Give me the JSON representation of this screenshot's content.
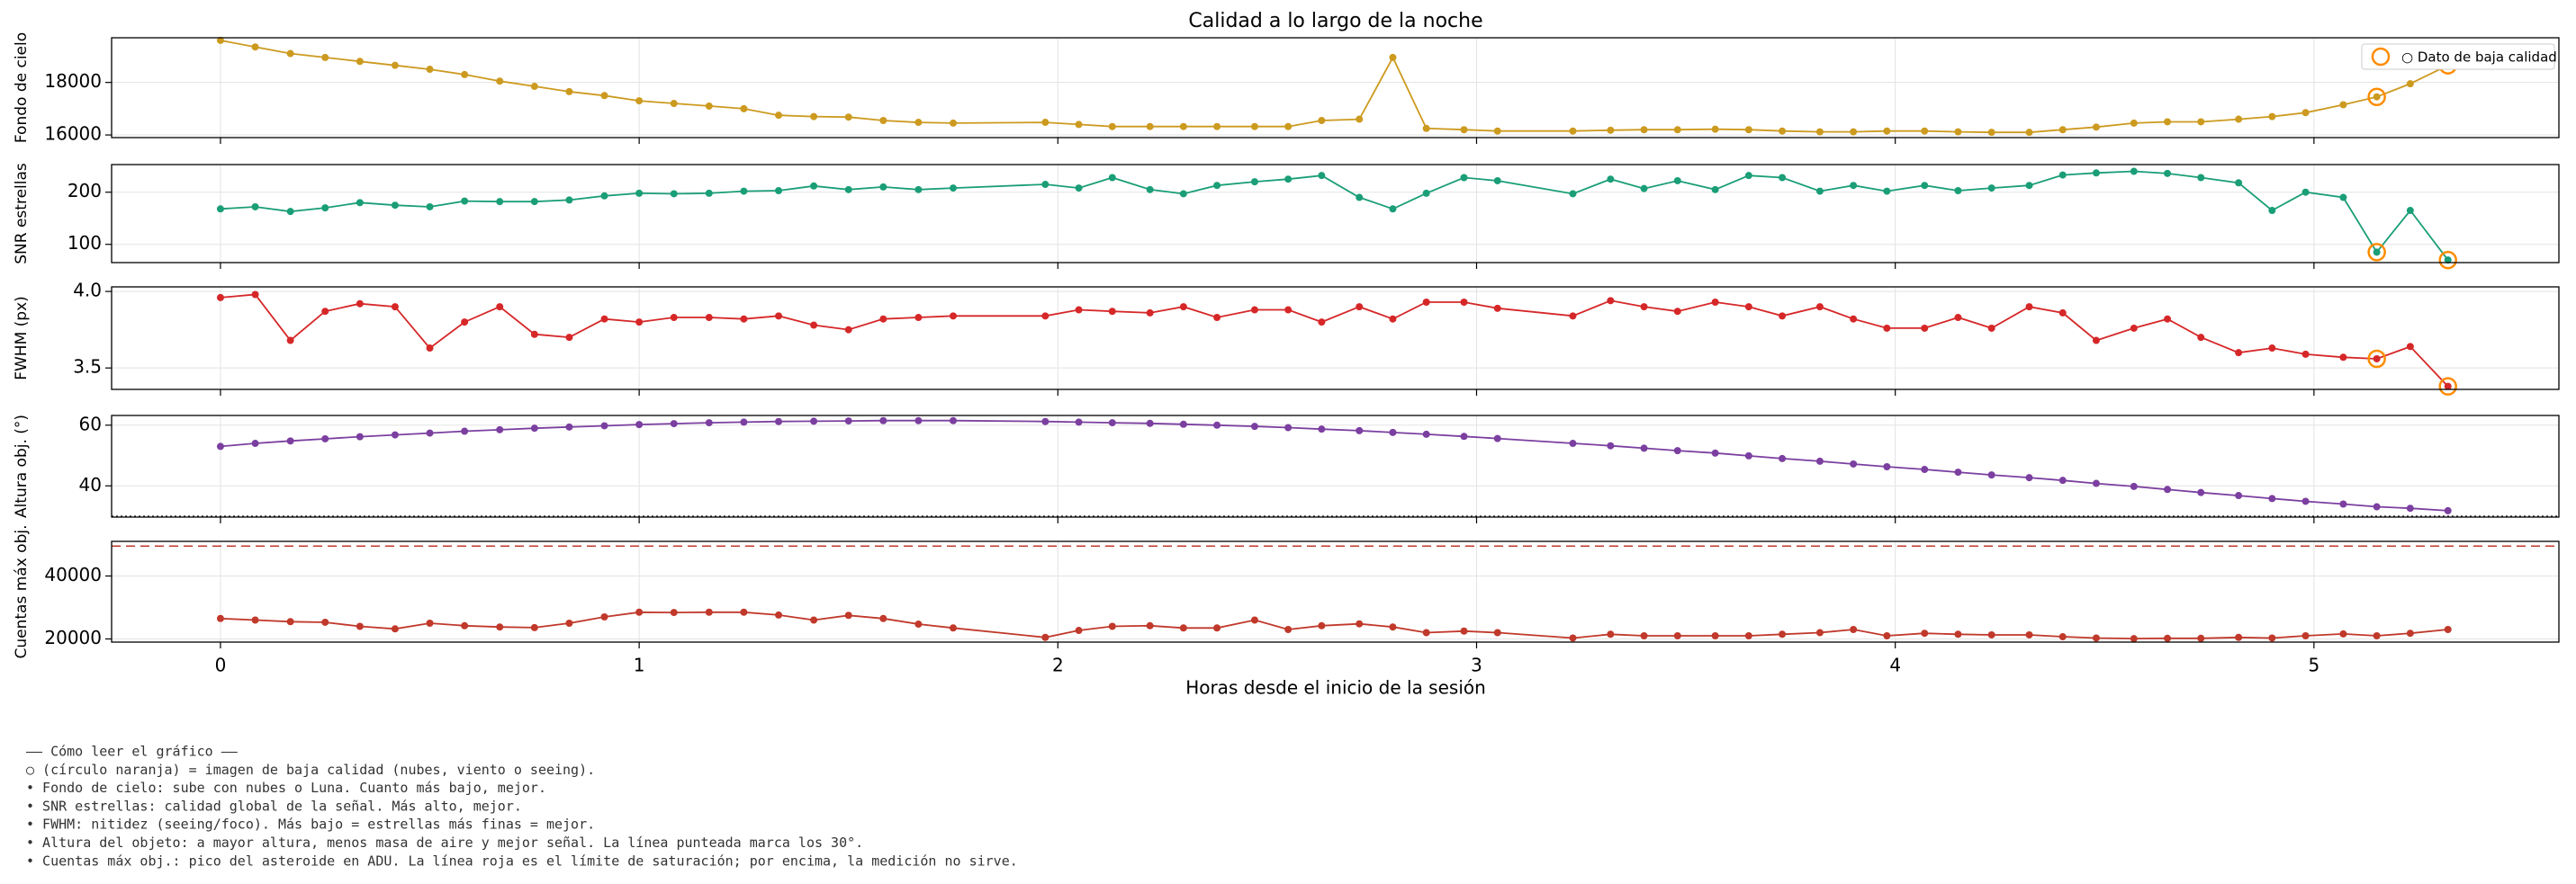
{
  "chart_data": {
    "type": "line",
    "title": "Calidad a lo largo de la noche",
    "xlabel": "Horas desde el inicio de la sesión",
    "x": [
      0,
      0.083,
      0.167,
      0.25,
      0.333,
      0.417,
      0.5,
      0.583,
      0.667,
      0.75,
      0.833,
      0.917,
      1.0,
      1.083,
      1.167,
      1.25,
      1.333,
      1.417,
      1.5,
      1.583,
      1.667,
      1.75,
      1.97,
      2.05,
      2.13,
      2.22,
      2.3,
      2.38,
      2.47,
      2.55,
      2.63,
      2.72,
      2.8,
      2.88,
      2.97,
      3.05,
      3.23,
      3.32,
      3.4,
      3.48,
      3.57,
      3.65,
      3.73,
      3.82,
      3.9,
      3.98,
      4.07,
      4.15,
      4.23,
      4.32,
      4.4,
      4.48,
      4.57,
      4.65,
      4.73,
      4.82,
      4.9,
      4.98,
      5.07,
      5.15,
      5.23,
      5.32
    ],
    "xlim": [
      -0.26,
      5.585
    ],
    "xticks": [
      0,
      1,
      2,
      3,
      4,
      5
    ],
    "grid": true,
    "flagged": [
      59,
      61
    ],
    "flagged_color": "#ff8c00",
    "legend": {
      "label": "○ Dato de baja calidad",
      "loc": "upper right"
    },
    "panels": [
      {
        "ylabel": "Fondo de cielo",
        "ylim": [
          15900,
          19700
        ],
        "yticks": [
          16000,
          18000
        ],
        "mark_flagged": true,
        "series": [
          {
            "color": "#cc9a1f",
            "values": [
              19600,
              19350,
              19100,
              18950,
              18800,
              18650,
              18500,
              18300,
              18050,
              17850,
              17650,
              17500,
              17300,
              17200,
              17100,
              17000,
              16750,
              16700,
              16680,
              16550,
              16480,
              16450,
              16480,
              16400,
              16320,
              16320,
              16320,
              16320,
              16320,
              16320,
              16550,
              16600,
              18950,
              16250,
              16200,
              16150,
              16150,
              16180,
              16200,
              16200,
              16220,
              16200,
              16150,
              16120,
              16120,
              16150,
              16150,
              16120,
              16100,
              16100,
              16200,
              16300,
              16450,
              16500,
              16500,
              16600,
              16700,
              16850,
              17150,
              17450,
              17950,
              18650
            ]
          }
        ]
      },
      {
        "ylabel": "SNR estrellas",
        "ylim": [
          65,
          253
        ],
        "yticks": [
          100,
          200
        ],
        "mark_flagged": true,
        "series": [
          {
            "color": "#1a9e77",
            "values": [
              168,
              172,
              163,
              170,
              180,
              175,
              172,
              183,
              182,
              182,
              185,
              193,
              198,
              197,
              198,
              202,
              203,
              212,
              205,
              210,
              205,
              208,
              215,
              208,
              228,
              205,
              197,
              213,
              220,
              225,
              232,
              190,
              168,
              198,
              228,
              222,
              197,
              225,
              207,
              222,
              205,
              232,
              228,
              202,
              213,
              202,
              213,
              203,
              208,
              213,
              233,
              237,
              240,
              236,
              228,
              218,
              165,
              200,
              190,
              85,
              165,
              70
            ]
          }
        ]
      },
      {
        "ylabel": "FWHM (px)",
        "ylim": [
          3.36,
          4.03
        ],
        "yticks": [
          3.5,
          {
            "value": 4.0,
            "label": "4.0"
          }
        ],
        "mark_flagged": true,
        "series": [
          {
            "color": "#d62728",
            "values": [
              3.96,
              3.98,
              3.68,
              3.87,
              3.92,
              3.9,
              3.63,
              3.8,
              3.9,
              3.72,
              3.7,
              3.82,
              3.8,
              3.83,
              3.83,
              3.82,
              3.84,
              3.78,
              3.75,
              3.82,
              3.83,
              3.84,
              3.84,
              3.88,
              3.87,
              3.86,
              3.9,
              3.83,
              3.88,
              3.88,
              3.8,
              3.9,
              3.82,
              3.93,
              3.93,
              3.89,
              3.84,
              3.94,
              3.9,
              3.87,
              3.93,
              3.9,
              3.84,
              3.9,
              3.82,
              3.76,
              3.76,
              3.83,
              3.76,
              3.9,
              3.86,
              3.68,
              3.76,
              3.82,
              3.7,
              3.6,
              3.63,
              3.59,
              3.57,
              3.56,
              3.64,
              3.38
            ]
          }
        ]
      },
      {
        "ylabel": "Altura obj. (°)",
        "ylim": [
          29.7,
          63.2
        ],
        "yticks": [
          40,
          60
        ],
        "mark_flagged": false,
        "hline": {
          "value": 30,
          "color": "#333333",
          "dash": "2,3"
        },
        "series": [
          {
            "color": "#7b3fa0",
            "values": [
              53,
              54,
              54.8,
              55.5,
              56.2,
              56.8,
              57.4,
              58,
              58.5,
              59,
              59.4,
              59.8,
              60.2,
              60.5,
              60.8,
              61,
              61.2,
              61.3,
              61.4,
              61.5,
              61.5,
              61.5,
              61.2,
              61,
              60.8,
              60.6,
              60.3,
              60,
              59.6,
              59.2,
              58.7,
              58.2,
              57.6,
              57,
              56.3,
              55.6,
              54,
              53.2,
              52.4,
              51.6,
              50.8,
              49.9,
              49,
              48.1,
              47.2,
              46.3,
              45.4,
              44.5,
              43.6,
              42.7,
              41.8,
              40.8,
              39.8,
              38.8,
              37.8,
              36.8,
              35.8,
              34.9,
              34,
              33.1,
              32.6,
              31.8
            ]
          }
        ]
      },
      {
        "ylabel": "Cuentas máx obj.",
        "ylim": [
          19000,
          51000
        ],
        "yticks": [
          20000,
          40000
        ],
        "mark_flagged": false,
        "hline": {
          "value": 49500,
          "color": "#c0392b",
          "dash": "10,6"
        },
        "series": [
          {
            "color": "#c0392b",
            "values": [
              26500,
              26000,
              25500,
              25300,
              24000,
              23200,
              25000,
              24200,
              23800,
              23600,
              25000,
              27000,
              28500,
              28400,
              28500,
              28500,
              27600,
              26000,
              27500,
              26500,
              24700,
              23500,
              20500,
              22700,
              24000,
              24200,
              23500,
              23500,
              26000,
              23000,
              24200,
              24800,
              23800,
              22000,
              22500,
              22000,
              20300,
              21500,
              21000,
              21000,
              21000,
              21000,
              21500,
              22000,
              23000,
              21000,
              21800,
              21500,
              21300,
              21300,
              20700,
              20300,
              20100,
              20200,
              20200,
              20500,
              20300,
              21000,
              21600,
              21000,
              21800,
              23000
            ]
          }
        ]
      }
    ]
  },
  "notes": [
    "—— Cómo leer el gráfico ——",
    "○ (círculo naranja) = imagen de baja calidad (nubes, viento o seeing).",
    "• Fondo de cielo: sube con nubes o Luna. Cuanto más bajo, mejor.",
    "• SNR estrellas: calidad global de la señal. Más alto, mejor.",
    "• FWHM: nitidez (seeing/foco). Más bajo = estrellas más finas = mejor.",
    "• Altura del objeto: a mayor altura, menos masa de aire y mejor señal. La línea punteada marca los 30°.",
    "• Cuentas máx obj.: pico del asteroide en ADU. La línea roja es el límite de saturación; por encima, la medición no sirve."
  ]
}
